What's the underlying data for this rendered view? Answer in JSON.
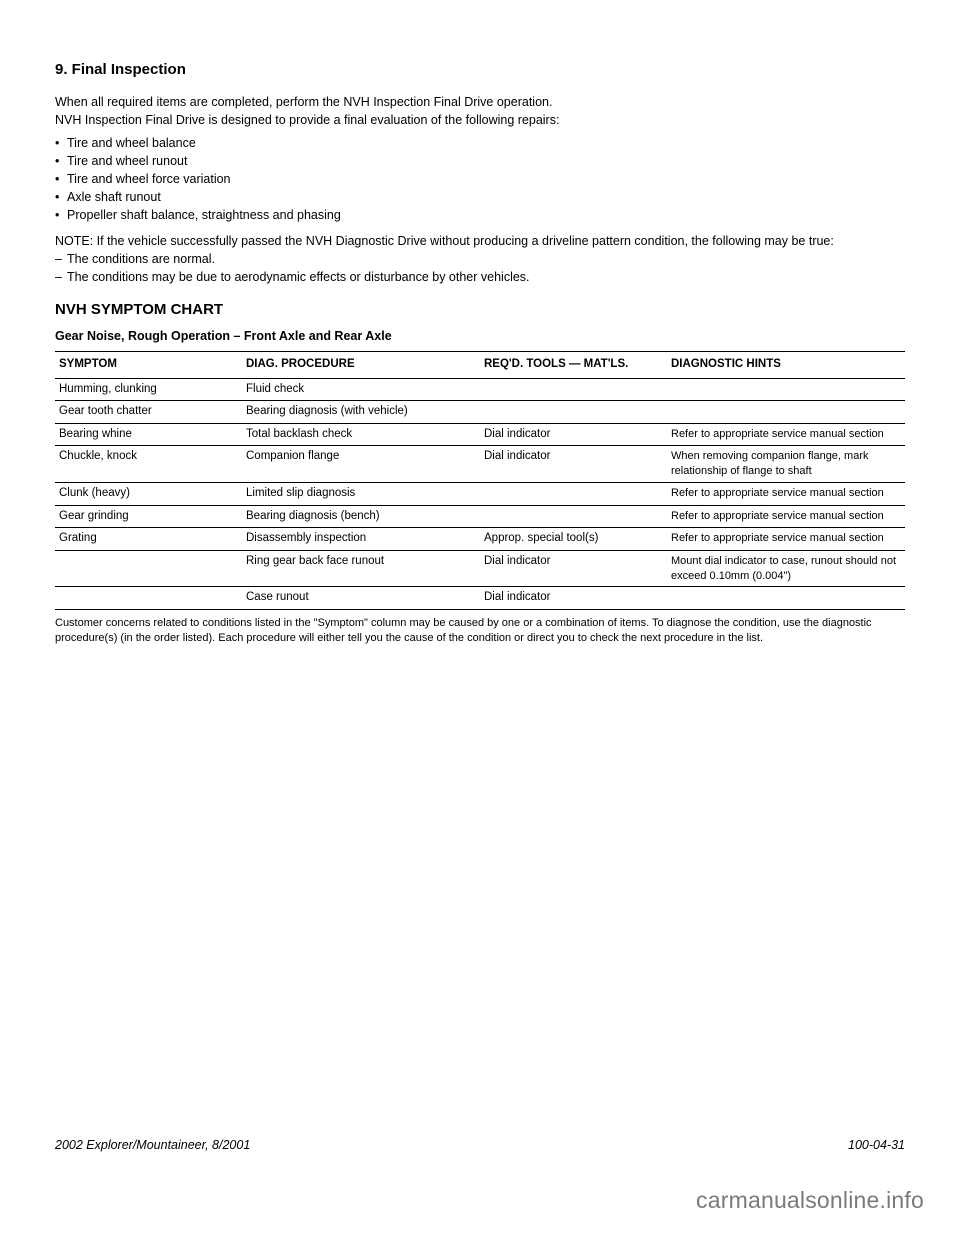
{
  "sectionTitle": "9. Final Inspection",
  "intro": [
    "When all required items are completed, perform the NVH Inspection Final Drive operation.",
    "NVH Inspection Final Drive is designed to provide a final evaluation of the following repairs:"
  ],
  "bullets": [
    "Tire and wheel balance",
    "Tire and wheel runout",
    "Tire and wheel force variation",
    "Axle shaft runout",
    "Propeller shaft balance, straightness and phasing"
  ],
  "noteLead": "NOTE: If the vehicle successfully passed the NVH Diagnostic Drive without producing a driveline pattern condition, the following may be true:",
  "noteItems": [
    "The conditions are normal.",
    "The conditions may be due to aerodynamic effects or disturbance by other vehicles."
  ],
  "chartTitle": "NVH SYMPTOM CHART",
  "subHeading": "Gear Noise, Rough Operation – Front Axle and Rear Axle",
  "table": {
    "headers": [
      "SYMPTOM",
      "DIAG. PROCEDURE",
      "REQ'D. TOOLS — MAT'LS.",
      "DIAGNOSTIC HINTS"
    ],
    "colWidths": [
      "22%",
      "28%",
      "22%",
      "28%"
    ],
    "rows": [
      [
        "Humming, clunking",
        "Fluid check",
        "",
        ""
      ],
      [
        "Gear tooth chatter",
        "Bearing diagnosis (with vehicle)",
        "",
        ""
      ],
      [
        "Bearing whine",
        "Total backlash check",
        "Dial indicator",
        "Refer to appropriate service manual section"
      ],
      [
        "Chuckle, knock",
        "Companion flange",
        "Dial indicator",
        "When removing companion flange, mark relationship of flange to shaft"
      ],
      [
        "Clunk (heavy)",
        "Limited slip diagnosis",
        "",
        "Refer to appropriate service manual section"
      ],
      [
        "Gear grinding",
        "Bearing diagnosis (bench)",
        "",
        "Refer to appropriate service manual section"
      ],
      [
        "Grating",
        "Disassembly inspection",
        "Approp. special tool(s)",
        "Refer to appropriate service manual section"
      ],
      [
        "",
        "Ring gear back face runout",
        "Dial indicator",
        "Mount dial indicator to case, runout should not exceed 0.10mm (0.004\")"
      ],
      [
        "",
        "Case runout",
        "Dial indicator",
        ""
      ]
    ]
  },
  "remark": "Customer concerns related to conditions listed in the \"Symptom\" column may be caused by one or a combination of items. To diagnose the condition, use the diagnostic procedure(s) (in the order listed). Each procedure will either tell you the cause of the condition or direct you to check the next procedure in the list.",
  "footerLeft": "2002 Explorer/Mountaineer, 8/2001",
  "footerRight": "100-04-31",
  "watermark": "carmanualsonline.info",
  "colors": {
    "text": "#000000",
    "rule": "#000000",
    "watermark": "#7a7a7a",
    "background": "#ffffff"
  },
  "fonts": {
    "body": "Arial, Helvetica, sans-serif",
    "bodySize": 13,
    "titleSize": 15,
    "tableSize": 11.5
  }
}
